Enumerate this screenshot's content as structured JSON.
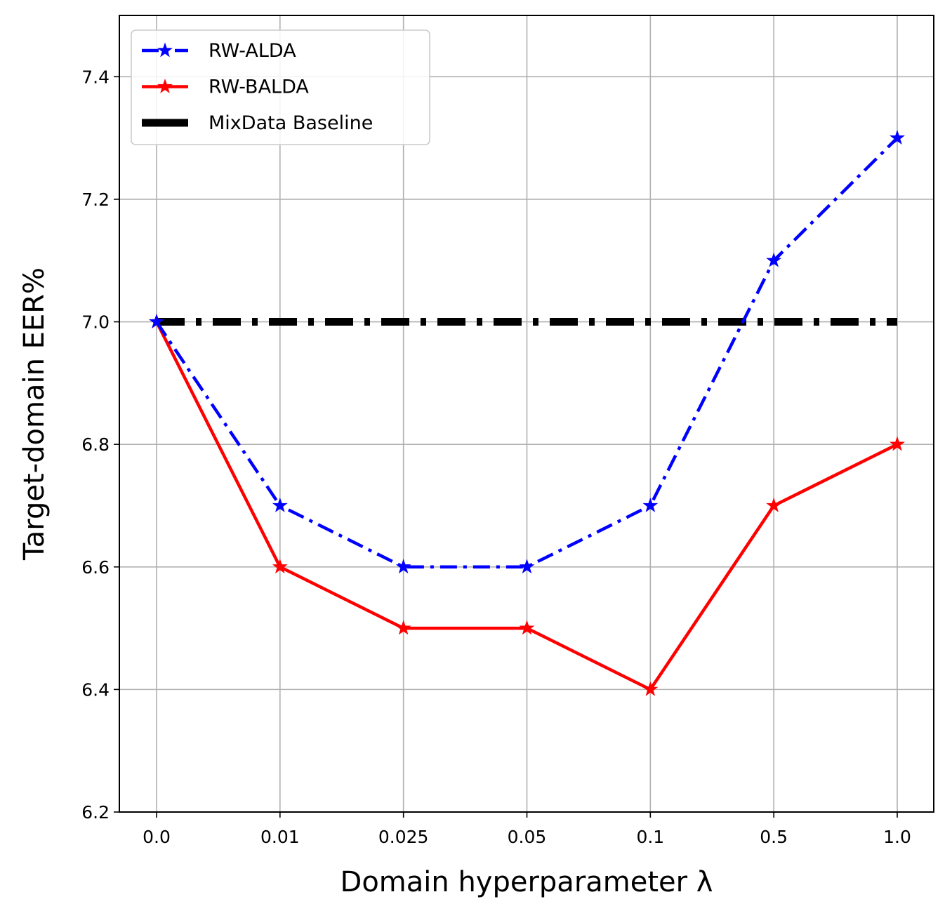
{
  "chart_data": {
    "type": "line",
    "categories": [
      "0.0",
      "0.01",
      "0.025",
      "0.05",
      "0.1",
      "0.5",
      "1.0"
    ],
    "xlabel": "Domain hyperparameter λ",
    "ylabel": "Target-domain EER%",
    "ylim": [
      6.2,
      7.5
    ],
    "yticks": [
      "6.2",
      "6.4",
      "6.6",
      "6.8",
      "7.0",
      "7.2",
      "7.4"
    ],
    "grid": true,
    "legend_position": "top-left",
    "series": [
      {
        "name": "RW-ALDA",
        "values": [
          7.0,
          6.7,
          6.6,
          6.6,
          6.7,
          7.1,
          7.3
        ],
        "color": "#0000ff",
        "style": "dashdot",
        "marker": "star"
      },
      {
        "name": "RW-BALDA",
        "values": [
          7.0,
          6.6,
          6.5,
          6.5,
          6.4,
          6.7,
          6.8
        ],
        "color": "#ff0000",
        "style": "solid",
        "marker": "star"
      },
      {
        "name": "MixData Baseline",
        "values": [
          7.0,
          7.0,
          7.0,
          7.0,
          7.0,
          7.0,
          7.0
        ],
        "color": "#000000",
        "style": "dashdot",
        "marker": "none"
      }
    ]
  }
}
